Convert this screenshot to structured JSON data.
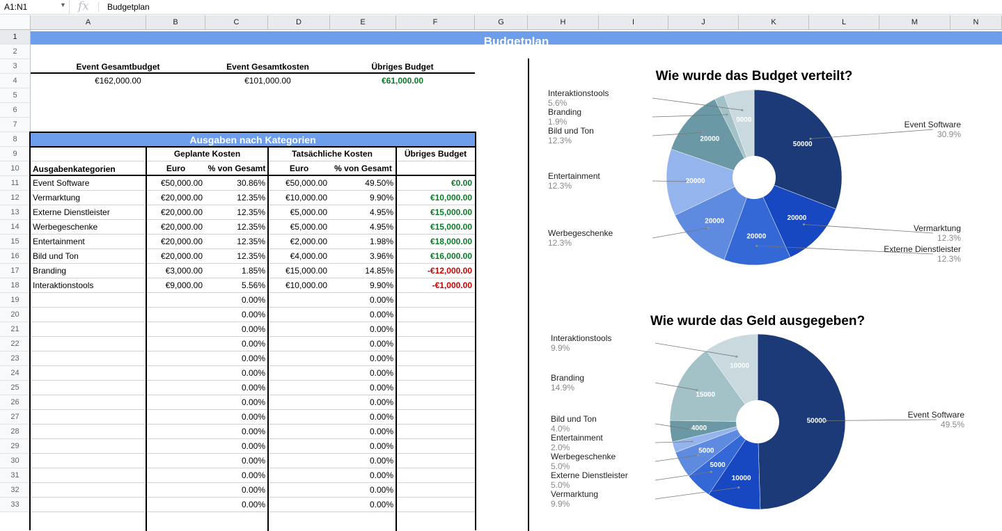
{
  "formula_bar": {
    "name_box": "A1:N1",
    "fx": "fx",
    "value": "Budgetplan"
  },
  "columns": [
    "A",
    "B",
    "C",
    "D",
    "E",
    "F",
    "G",
    "H",
    "I",
    "J",
    "K",
    "L",
    "M",
    "N"
  ],
  "rows": [
    "1",
    "2",
    "3",
    "4",
    "5",
    "6",
    "7",
    "8",
    "9",
    "10",
    "11",
    "12",
    "13",
    "14",
    "15",
    "16",
    "17",
    "18",
    "19",
    "20",
    "21",
    "22",
    "23",
    "24",
    "25",
    "26",
    "27",
    "28",
    "29",
    "30",
    "31",
    "32",
    "33"
  ],
  "title": "Budgetplan",
  "summary": {
    "h1": "Event Gesamtbudget",
    "h2": "Event Gesamtkosten",
    "h3": "Übriges Budget",
    "v1": "€162,000.00",
    "v2": "€101,000.00",
    "v3": "€61,000.00"
  },
  "table": {
    "title": "Ausgaben nach Kategorien",
    "group1": "Geplante Kosten",
    "group2": "Tatsächliche Kosten",
    "group3": "Übriges Budget",
    "col_cat": "Ausgabenkategorien",
    "col_euro": "Euro",
    "col_pct": "% von Gesamt",
    "rows": [
      [
        "Event Software",
        "€50,000.00",
        "30.86%",
        "€50,000.00",
        "49.50%",
        "€0.00"
      ],
      [
        "Vermarktung",
        "€20,000.00",
        "12.35%",
        "€10,000.00",
        "9.90%",
        "€10,000.00"
      ],
      [
        "Externe Dienstleister",
        "€20,000.00",
        "12.35%",
        "€5,000.00",
        "4.95%",
        "€15,000.00"
      ],
      [
        "Werbegeschenke",
        "€20,000.00",
        "12.35%",
        "€5,000.00",
        "4.95%",
        "€15,000.00"
      ],
      [
        "Entertainment",
        "€20,000.00",
        "12.35%",
        "€2,000.00",
        "1.98%",
        "€18,000.00"
      ],
      [
        "Bild und Ton",
        "€20,000.00",
        "12.35%",
        "€4,000.00",
        "3.96%",
        "€16,000.00"
      ],
      [
        "Branding",
        "€3,000.00",
        "1.85%",
        "€15,000.00",
        "14.85%",
        "-€12,000.00"
      ],
      [
        "Interaktionstools",
        "€9,000.00",
        "5.56%",
        "€10,000.00",
        "9.90%",
        "-€1,000.00"
      ]
    ],
    "empty_pct": "0.00%"
  },
  "chart_data": [
    {
      "type": "pie",
      "title": "Wie wurde das Budget verteilt?",
      "categories": [
        "Event Software",
        "Vermarktung",
        "Externe Dienstleister",
        "Werbegeschenke",
        "Entertainment",
        "Bild und Ton",
        "Branding",
        "Interaktionstools"
      ],
      "values": [
        50000,
        20000,
        20000,
        20000,
        20000,
        20000,
        3000,
        9000
      ],
      "slice_labels": [
        "50000",
        "20000",
        "20000",
        "20000",
        "20000",
        "20000",
        "",
        "9000"
      ],
      "percent_labels": [
        "30.9%",
        "12.3%",
        "12.3%",
        "12.3%",
        "12.3%",
        "12.3%",
        "1.9%",
        "5.6%"
      ],
      "donut": true,
      "colors": [
        "#1c3a78",
        "#1847c2",
        "#3468d6",
        "#5e8ae0",
        "#94b4ee",
        "#6a98a5",
        "#a3c2c8",
        "#c9d9dd"
      ]
    },
    {
      "type": "pie",
      "title": "Wie wurde das Geld ausgegeben?",
      "categories": [
        "Event Software",
        "Vermarktung",
        "Externe Dienstleister",
        "Werbegeschenke",
        "Entertainment",
        "Bild und Ton",
        "Branding",
        "Interaktionstools"
      ],
      "values": [
        50000,
        10000,
        5000,
        5000,
        2000,
        4000,
        15000,
        10000
      ],
      "slice_labels": [
        "50000",
        "10000",
        "5000",
        "5000",
        "",
        "4000",
        "15000",
        "10000"
      ],
      "percent_labels": [
        "49.5%",
        "9.9%",
        "5.0%",
        "5.0%",
        "2.0%",
        "4.0%",
        "14.9%",
        "9.9%"
      ],
      "donut": true,
      "colors": [
        "#1c3a78",
        "#1847c2",
        "#3468d6",
        "#5e8ae0",
        "#94b4ee",
        "#6a98a5",
        "#a3c2c8",
        "#c9d9dd"
      ]
    }
  ]
}
